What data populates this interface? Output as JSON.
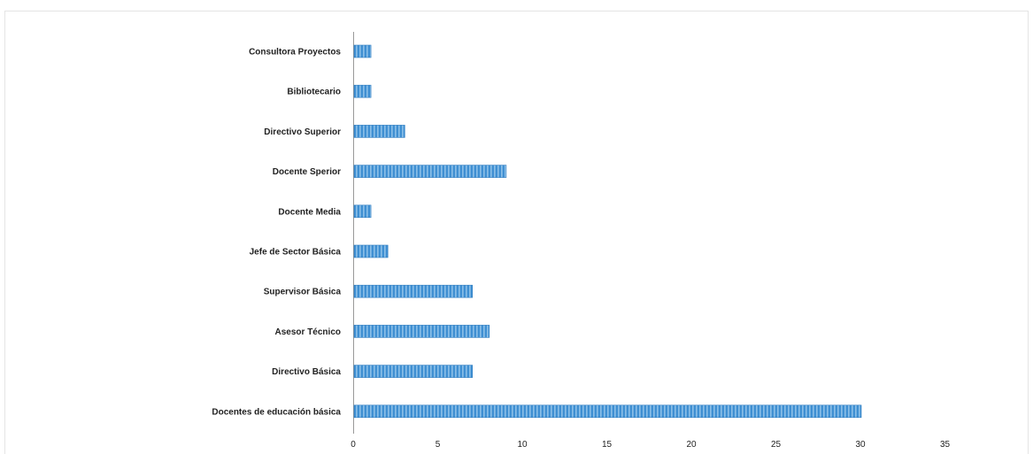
{
  "chart_data": {
    "type": "bar",
    "orientation": "horizontal",
    "categories": [
      "Consultora Proyectos",
      "Bibliotecario",
      "Directivo Superior",
      "Docente Sperior",
      "Docente Media",
      "Jefe de Sector Básica",
      "Supervisor Básica",
      "Asesor Técnico",
      "Directivo Básica",
      "Docentes de educación básica"
    ],
    "values": [
      1,
      1,
      3,
      9,
      1,
      2,
      7,
      8,
      7,
      30
    ],
    "xlim": [
      0,
      35
    ],
    "xticks": [
      "0",
      "5",
      "10",
      "15",
      "20",
      "25",
      "30",
      "35"
    ],
    "title": "",
    "xlabel": "",
    "ylabel": "",
    "grid": false,
    "legend": "none",
    "colors": {
      "bar": "#3f8fd2",
      "bar_stripe": "#b9dcf5",
      "axis": "#999999",
      "border": "#e4e4e4"
    }
  }
}
